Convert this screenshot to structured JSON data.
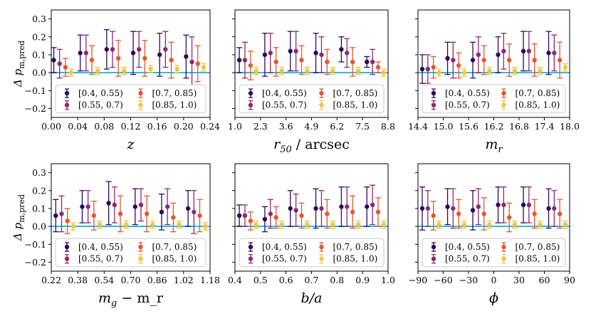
{
  "figure": {
    "ylabel": "Δ p_m,pred",
    "reference_line_color": "#1fb8d8",
    "legend_entries": [
      "[0.4, 0.55)",
      "[0.55, 0.7)",
      "[0.7, 0.85)",
      "[0.85, 1.0)"
    ],
    "series_colors": [
      "#2a0a5e",
      "#8c2a6e",
      "#e4572e",
      "#f5c542"
    ]
  },
  "chart_data": [
    {
      "type": "scatter",
      "xlabel": "z",
      "xlim": [
        0.0,
        0.24
      ],
      "ylim": [
        -0.25,
        0.35
      ],
      "xticks": [
        0.0,
        0.04,
        0.08,
        0.12,
        0.16,
        0.2,
        0.24
      ],
      "xtick_labels": [
        "0.00",
        "0.04",
        "0.08",
        "0.12",
        "0.16",
        "0.20",
        "0.24"
      ],
      "yticks": [
        -0.2,
        -0.1,
        0.0,
        0.1,
        0.2,
        0.3
      ],
      "ytick_labels": [
        "−0.2",
        "−0.1",
        "0.0",
        "0.1",
        "0.2",
        "0.3"
      ],
      "show_ytick_labels": true,
      "x_centers": [
        0.017,
        0.057,
        0.097,
        0.137,
        0.177,
        0.217
      ],
      "series": [
        {
          "name": "[0.4, 0.55)",
          "y": [
            0.07,
            0.11,
            0.13,
            0.11,
            0.1,
            0.09
          ],
          "err": [
            0.07,
            0.1,
            0.11,
            0.12,
            0.12,
            0.12
          ]
        },
        {
          "name": "[0.55, 0.7)",
          "y": [
            0.05,
            0.11,
            0.13,
            0.13,
            0.13,
            0.06
          ],
          "err": [
            0.08,
            0.1,
            0.1,
            0.1,
            0.1,
            0.14
          ]
        },
        {
          "name": "[0.7, 0.85)",
          "y": [
            0.03,
            0.07,
            0.08,
            0.08,
            0.07,
            0.05
          ],
          "err": [
            0.05,
            0.08,
            0.1,
            0.1,
            0.1,
            0.1
          ]
        },
        {
          "name": "[0.85, 1.0)",
          "y": [
            0.0,
            0.01,
            0.01,
            0.02,
            0.02,
            0.03
          ],
          "err": [
            0.02,
            0.02,
            0.02,
            0.02,
            0.02,
            0.02
          ]
        }
      ]
    },
    {
      "type": "scatter",
      "xlabel": "r_50 / arcsec",
      "xlim": [
        1.0,
        8.8
      ],
      "ylim": [
        -0.25,
        0.35
      ],
      "xticks": [
        1.0,
        2.3,
        3.6,
        4.9,
        6.2,
        7.5,
        8.8
      ],
      "xtick_labels": [
        "1.0",
        "2.3",
        "3.6",
        "4.9",
        "6.2",
        "7.5",
        "8.8"
      ],
      "yticks": [
        -0.2,
        -0.1,
        0.0,
        0.1,
        0.2,
        0.3
      ],
      "ytick_labels": [
        "",
        "",
        "",
        "",
        "",
        ""
      ],
      "show_ytick_labels": false,
      "x_centers": [
        1.65,
        2.95,
        4.25,
        5.55,
        6.85,
        8.15
      ],
      "series": [
        {
          "name": "[0.4, 0.55)",
          "y": [
            0.07,
            0.1,
            0.12,
            0.11,
            0.13,
            0.06
          ],
          "err": [
            0.07,
            0.12,
            0.11,
            0.11,
            0.07,
            0.03
          ]
        },
        {
          "name": "[0.55, 0.7)",
          "y": [
            0.07,
            0.11,
            0.12,
            0.1,
            0.11,
            0.06
          ],
          "err": [
            0.1,
            0.11,
            0.11,
            0.1,
            0.08,
            0.07
          ]
        },
        {
          "name": "[0.7, 0.85)",
          "y": [
            0.04,
            0.06,
            0.07,
            0.06,
            0.06,
            0.03
          ],
          "err": [
            0.08,
            0.08,
            0.08,
            0.07,
            0.08,
            0.03
          ]
        },
        {
          "name": "[0.85, 1.0)",
          "y": [
            0.01,
            0.01,
            0.01,
            0.01,
            0.01,
            0.0
          ],
          "err": [
            0.02,
            0.02,
            0.02,
            0.02,
            0.02,
            0.02
          ]
        }
      ]
    },
    {
      "type": "scatter",
      "xlabel": "m_r",
      "xlim": [
        14.4,
        18.0
      ],
      "ylim": [
        -0.25,
        0.35
      ],
      "xticks": [
        14.4,
        15.0,
        15.6,
        16.2,
        16.8,
        17.4,
        18.0
      ],
      "xtick_labels": [
        "14.4",
        "15.0",
        "15.6",
        "16.2",
        "16.8",
        "17.4",
        "18.0"
      ],
      "yticks": [
        -0.2,
        -0.1,
        0.0,
        0.1,
        0.2,
        0.3
      ],
      "ytick_labels": [
        "",
        "",
        "",
        "",
        "",
        ""
      ],
      "show_ytick_labels": false,
      "x_centers": [
        14.7,
        15.3,
        15.9,
        16.5,
        17.1,
        17.7
      ],
      "series": [
        {
          "name": "[0.4, 0.55)",
          "y": [
            0.02,
            0.08,
            0.07,
            0.1,
            0.12,
            0.11
          ],
          "err": [
            0.08,
            0.09,
            0.1,
            0.1,
            0.11,
            0.12
          ]
        },
        {
          "name": "[0.55, 0.7)",
          "y": [
            0.02,
            0.07,
            0.1,
            0.12,
            0.12,
            0.11
          ],
          "err": [
            0.08,
            0.1,
            0.1,
            0.1,
            0.11,
            0.1
          ]
        },
        {
          "name": "[0.7, 0.85)",
          "y": [
            0.03,
            0.04,
            0.07,
            0.07,
            0.07,
            0.07
          ],
          "err": [
            0.06,
            0.07,
            0.08,
            0.09,
            0.09,
            0.1
          ]
        },
        {
          "name": "[0.85, 1.0)",
          "y": [
            0.0,
            0.0,
            0.01,
            0.01,
            0.01,
            0.03
          ],
          "err": [
            0.02,
            0.02,
            0.02,
            0.02,
            0.02,
            0.02
          ]
        }
      ]
    },
    {
      "type": "scatter",
      "xlabel": "m_g − m_r",
      "xlim": [
        0.22,
        1.18
      ],
      "ylim": [
        -0.25,
        0.35
      ],
      "xticks": [
        0.22,
        0.38,
        0.54,
        0.7,
        0.86,
        1.02,
        1.18
      ],
      "xtick_labels": [
        "0.22",
        "0.38",
        "0.54",
        "0.70",
        "0.86",
        "1.02",
        "1.18"
      ],
      "yticks": [
        -0.2,
        -0.1,
        0.0,
        0.1,
        0.2,
        0.3
      ],
      "ytick_labels": [
        "−0.2",
        "−0.1",
        "0.0",
        "0.1",
        "0.2",
        "0.3"
      ],
      "show_ytick_labels": true,
      "x_centers": [
        0.3,
        0.46,
        0.62,
        0.78,
        0.94,
        1.1
      ],
      "series": [
        {
          "name": "[0.4, 0.55)",
          "y": [
            0.06,
            0.11,
            0.13,
            0.11,
            0.08,
            0.1
          ],
          "err": [
            0.09,
            0.09,
            0.12,
            0.1,
            0.1,
            0.1
          ]
        },
        {
          "name": "[0.55, 0.7)",
          "y": [
            0.07,
            0.11,
            0.12,
            0.12,
            0.11,
            0.08
          ],
          "err": [
            0.1,
            0.09,
            0.1,
            0.09,
            0.1,
            0.12
          ]
        },
        {
          "name": "[0.7, 0.85)",
          "y": [
            0.03,
            0.06,
            0.07,
            0.07,
            0.05,
            0.06
          ],
          "err": [
            0.07,
            0.08,
            0.1,
            0.1,
            0.08,
            0.09
          ]
        },
        {
          "name": "[0.85, 1.0)",
          "y": [
            0.0,
            0.01,
            0.01,
            0.01,
            0.01,
            0.0
          ],
          "err": [
            0.02,
            0.02,
            0.02,
            0.02,
            0.02,
            0.02
          ]
        }
      ]
    },
    {
      "type": "scatter",
      "xlabel": "b/a",
      "xlim": [
        0.4,
        1.0
      ],
      "ylim": [
        -0.25,
        0.35
      ],
      "xticks": [
        0.4,
        0.5,
        0.6,
        0.7,
        0.8,
        0.9,
        1.0
      ],
      "xtick_labels": [
        "0.4",
        "0.5",
        "0.6",
        "0.7",
        "0.8",
        "0.9",
        "1.0"
      ],
      "yticks": [
        -0.2,
        -0.1,
        0.0,
        0.1,
        0.2,
        0.3
      ],
      "ytick_labels": [
        "",
        "",
        "",
        "",
        "",
        ""
      ],
      "show_ytick_labels": false,
      "x_centers": [
        0.45,
        0.55,
        0.65,
        0.75,
        0.85,
        0.95
      ],
      "series": [
        {
          "name": "[0.4, 0.55)",
          "y": [
            0.06,
            0.04,
            0.1,
            0.1,
            0.11,
            0.11
          ],
          "err": [
            0.06,
            0.07,
            0.1,
            0.11,
            0.11,
            0.11
          ]
        },
        {
          "name": "[0.55, 0.7)",
          "y": [
            0.06,
            0.07,
            0.09,
            0.1,
            0.11,
            0.12
          ],
          "err": [
            0.06,
            0.08,
            0.09,
            0.1,
            0.11,
            0.11
          ]
        },
        {
          "name": "[0.7, 0.85)",
          "y": [
            0.03,
            0.05,
            0.06,
            0.07,
            0.08,
            0.08
          ],
          "err": [
            0.05,
            0.06,
            0.07,
            0.08,
            0.09,
            0.08
          ]
        },
        {
          "name": "[0.85, 1.0)",
          "y": [
            0.01,
            0.01,
            0.01,
            0.01,
            0.01,
            0.01
          ],
          "err": [
            0.02,
            0.02,
            0.02,
            0.02,
            0.02,
            0.02
          ]
        }
      ]
    },
    {
      "type": "scatter",
      "xlabel": "ϕ",
      "xlim": [
        -90,
        90
      ],
      "ylim": [
        -0.25,
        0.35
      ],
      "xticks": [
        -90,
        -60,
        -30,
        0,
        30,
        60,
        90
      ],
      "xtick_labels": [
        "−90",
        "−60",
        "−30",
        "0",
        "30",
        "60",
        "90"
      ],
      "yticks": [
        -0.2,
        -0.1,
        0.0,
        0.1,
        0.2,
        0.3
      ],
      "ytick_labels": [
        "",
        "",
        "",
        "",
        "",
        ""
      ],
      "show_ytick_labels": false,
      "x_centers": [
        -75,
        -45,
        -15,
        15,
        45,
        75
      ],
      "series": [
        {
          "name": "[0.4, 0.55)",
          "y": [
            0.1,
            0.11,
            0.09,
            0.12,
            0.12,
            0.1
          ],
          "err": [
            0.12,
            0.1,
            0.11,
            0.1,
            0.1,
            0.11
          ]
        },
        {
          "name": "[0.55, 0.7)",
          "y": [
            0.1,
            0.1,
            0.11,
            0.12,
            0.12,
            0.1
          ],
          "err": [
            0.1,
            0.11,
            0.1,
            0.1,
            0.1,
            0.1
          ]
        },
        {
          "name": "[0.7, 0.85)",
          "y": [
            0.06,
            0.07,
            0.07,
            0.05,
            0.07,
            0.07
          ],
          "err": [
            0.08,
            0.08,
            0.09,
            0.08,
            0.08,
            0.08
          ]
        },
        {
          "name": "[0.85, 1.0)",
          "y": [
            0.01,
            0.01,
            0.01,
            0.01,
            0.01,
            0.01
          ],
          "err": [
            0.02,
            0.02,
            0.02,
            0.02,
            0.02,
            0.02
          ]
        }
      ]
    }
  ]
}
